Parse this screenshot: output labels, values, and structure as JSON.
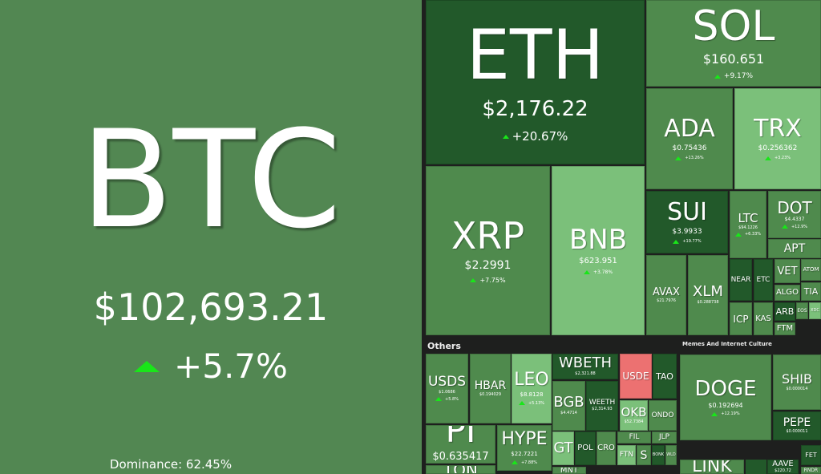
{
  "colors": {
    "up_strong": "#22592a",
    "up": "#4f8a4d",
    "up_light": "#7bc07a",
    "down": "#ec7171",
    "btc_bg": "#528752",
    "up_arrow": "#19e619"
  },
  "btc": {
    "symbol": "BTC",
    "price": "$102,693.21",
    "change": "+5.7%",
    "dominance": "Dominance: 62.45%"
  },
  "groups": {
    "others": "Others",
    "memes": "Memes And Internet Culture"
  },
  "tiles": [
    {
      "symbol": "ETH",
      "price": "$2,176.22",
      "change": "+20.67%",
      "tone": "dark"
    },
    {
      "symbol": "SOL",
      "price": "$160.651",
      "change": "+9.17%",
      "tone": "mid"
    },
    {
      "symbol": "ADA",
      "price": "$0.75436",
      "change": "+13.26%",
      "tone": "mid"
    },
    {
      "symbol": "TRX",
      "price": "$0.256362",
      "change": "+3.23%",
      "tone": "light"
    },
    {
      "symbol": "XRP",
      "price": "$2.2991",
      "change": "+7.75%",
      "tone": "mid"
    },
    {
      "symbol": "BNB",
      "price": "$623.951",
      "change": "+3.78%",
      "tone": "light"
    },
    {
      "symbol": "SUI",
      "price": "$3.9933",
      "change": "+19.77%",
      "tone": "dark"
    },
    {
      "symbol": "LTC",
      "price": "$94.1226",
      "change": "+6.33%",
      "tone": "mid"
    },
    {
      "symbol": "DOT",
      "price": "$4.4337",
      "change": "+12.9%",
      "tone": "mid"
    },
    {
      "symbol": "APT",
      "tone": "mid"
    },
    {
      "symbol": "AVAX",
      "price": "$21.7976",
      "tone": "mid"
    },
    {
      "symbol": "XLM",
      "price": "$0.288738",
      "tone": "mid"
    },
    {
      "symbol": "NEAR",
      "tone": "dark"
    },
    {
      "symbol": "ETC",
      "tone": "dark"
    },
    {
      "symbol": "VET",
      "tone": "mid"
    },
    {
      "symbol": "ATOM",
      "tone": "mid"
    },
    {
      "symbol": "ALGO",
      "tone": "mid"
    },
    {
      "symbol": "TIA",
      "tone": "mid"
    },
    {
      "symbol": "ICP",
      "tone": "mid"
    },
    {
      "symbol": "KAS",
      "tone": "mid"
    },
    {
      "symbol": "ARB",
      "tone": "dark"
    },
    {
      "symbol": "FTM",
      "tone": "mid"
    },
    {
      "symbol": "EOS",
      "tone": "mid"
    },
    {
      "symbol": "XDC",
      "tone": "light"
    },
    {
      "symbol": "USDS",
      "price": "$1.0686",
      "change": "+5.8%",
      "tone": "mid"
    },
    {
      "symbol": "HBAR",
      "price": "$0.194029",
      "tone": "mid"
    },
    {
      "symbol": "LEO",
      "price": "$8.8128",
      "change": "+5.13%",
      "tone": "light"
    },
    {
      "symbol": "WBETH",
      "price": "$2,321.88",
      "tone": "dark"
    },
    {
      "symbol": "USDE",
      "tone": "red",
      "down": true
    },
    {
      "symbol": "TAO",
      "tone": "dark"
    },
    {
      "symbol": "BGB",
      "price": "$4.4714",
      "tone": "mid"
    },
    {
      "symbol": "WEETH",
      "price": "$2,314.93",
      "tone": "dark"
    },
    {
      "symbol": "OKB",
      "price": "$52.7384",
      "tone": "light"
    },
    {
      "symbol": "ONDO",
      "tone": "mid"
    },
    {
      "symbol": "PI",
      "price": "$0.635417",
      "change": "+6.36%",
      "tone": "mid"
    },
    {
      "symbol": "HYPE",
      "price": "$22.7221",
      "change": "+7.88%",
      "tone": "mid"
    },
    {
      "symbol": "TON",
      "tone": "mid"
    },
    {
      "symbol": "GT",
      "tone": "light"
    },
    {
      "symbol": "POL",
      "tone": "dark"
    },
    {
      "symbol": "CRO",
      "tone": "mid"
    },
    {
      "symbol": "FIL",
      "tone": "mid"
    },
    {
      "symbol": "JLP",
      "tone": "mid"
    },
    {
      "symbol": "FTN",
      "tone": "light"
    },
    {
      "symbol": "S",
      "tone": "mid"
    },
    {
      "symbol": "BONK",
      "tone": "dark"
    },
    {
      "symbol": "WLD",
      "tone": "mid"
    },
    {
      "symbol": "MNT",
      "tone": "mid"
    },
    {
      "symbol": "DOGE",
      "price": "$0.192694",
      "change": "+12.19%",
      "tone": "mid"
    },
    {
      "symbol": "SHIB",
      "price": "$0.000014",
      "tone": "mid"
    },
    {
      "symbol": "PEPE",
      "price": "$0.000011",
      "tone": "dark"
    },
    {
      "symbol": "LINK",
      "tone": "mid"
    },
    {
      "symbol": "AAVE",
      "price": "$220.72",
      "tone": "dark"
    },
    {
      "symbol": "FET",
      "tone": "dark"
    },
    {
      "symbol": "RNDR",
      "tone": "mid"
    }
  ]
}
